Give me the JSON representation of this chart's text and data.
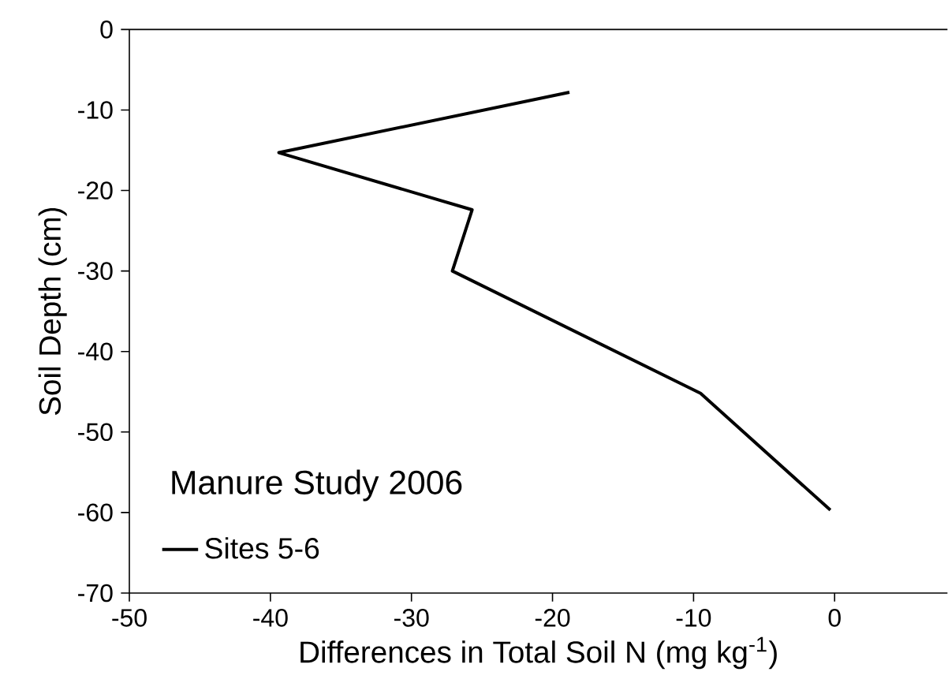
{
  "chart_data": {
    "type": "line",
    "xlabel": "Differences in Total Soil N (mg kg$^{-1}$)",
    "ylabel": "Soil Depth (cm)",
    "legend_title": "Manure Study 2006",
    "legend": "bottom left",
    "marker": "none",
    "line_style": "solid",
    "grid": false,
    "xlim": [
      -50,
      8
    ],
    "xticks": [
      -50,
      -40,
      -30,
      -20,
      -10,
      0
    ],
    "ylim": [
      -70,
      0
    ],
    "yticks": [
      -70,
      -60,
      -50,
      -40,
      -30,
      -20,
      -10,
      0
    ],
    "series": [
      {
        "name": "Sites 5-6",
        "color": "#000000",
        "x": [
          -18.8,
          -39.4,
          -25.7,
          -27.1,
          -9.5,
          -0.3
        ],
        "values": [
          -7.8,
          -15.3,
          -22.4,
          -30.0,
          -45.2,
          -59.7
        ]
      }
    ]
  }
}
